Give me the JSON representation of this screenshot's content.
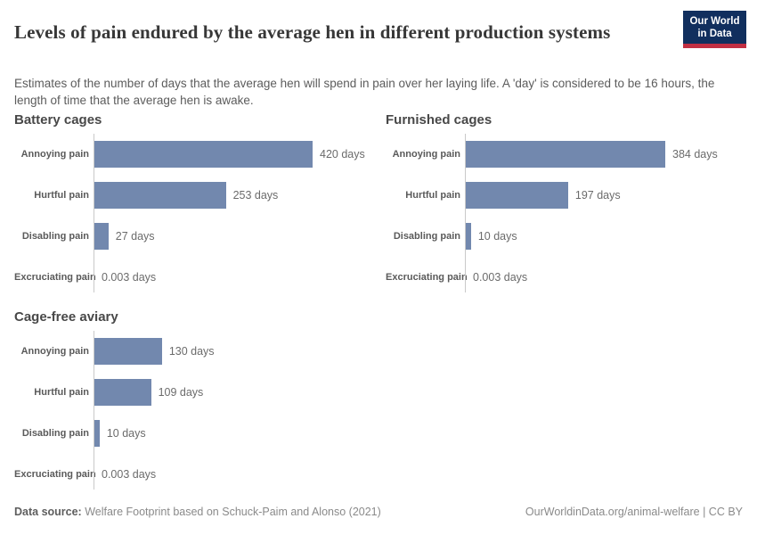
{
  "header": {
    "title": "Levels of pain endured by the average hen in different production systems",
    "subtitle": "Estimates of the number of days that the average hen will spend in pain over her laying life. A 'day' is considered to be 16 hours, the length of time that the average hen is awake.",
    "logo": {
      "line1": "Our World",
      "line2": "in Data"
    }
  },
  "chart_data": [
    {
      "type": "bar",
      "title": "Battery cages",
      "categories": [
        "Annoying pain",
        "Hurtful pain",
        "Disabling pain",
        "Excruciating pain"
      ],
      "values": [
        420,
        253,
        27,
        0.003
      ],
      "value_labels": [
        "420 days",
        "253 days",
        "27 days",
        "0.003 days"
      ],
      "unit": "days",
      "orientation": "horizontal",
      "xlim": [
        0,
        505
      ],
      "grid": false
    },
    {
      "type": "bar",
      "title": "Furnished cages",
      "categories": [
        "Annoying pain",
        "Hurtful pain",
        "Disabling pain",
        "Excruciating pain"
      ],
      "values": [
        384,
        197,
        10,
        0.003
      ],
      "value_labels": [
        "384 days",
        "197 days",
        "10 days",
        "0.003 days"
      ],
      "unit": "days",
      "orientation": "horizontal",
      "xlim": [
        0,
        505
      ],
      "grid": false
    },
    {
      "type": "bar",
      "title": "Cage-free aviary",
      "categories": [
        "Annoying pain",
        "Hurtful pain",
        "Disabling pain",
        "Excruciating pain"
      ],
      "values": [
        130,
        109,
        10,
        0.003
      ],
      "value_labels": [
        "130 days",
        "109 days",
        "10 days",
        "0.003 days"
      ],
      "unit": "days",
      "orientation": "horizontal",
      "xlim": [
        0,
        505
      ],
      "grid": false
    }
  ],
  "colors": {
    "bar": "#7288ae",
    "axis_line": "#c9c9c9",
    "logo_navy": "#112f5e",
    "logo_red": "#c12f43"
  },
  "footer": {
    "datasource_label": "Data source:",
    "datasource_text": " Welfare Footprint based on Schuck-Paim and Alonso (2021)",
    "right_text": "OurWorldinData.org/animal-welfare | CC BY"
  }
}
